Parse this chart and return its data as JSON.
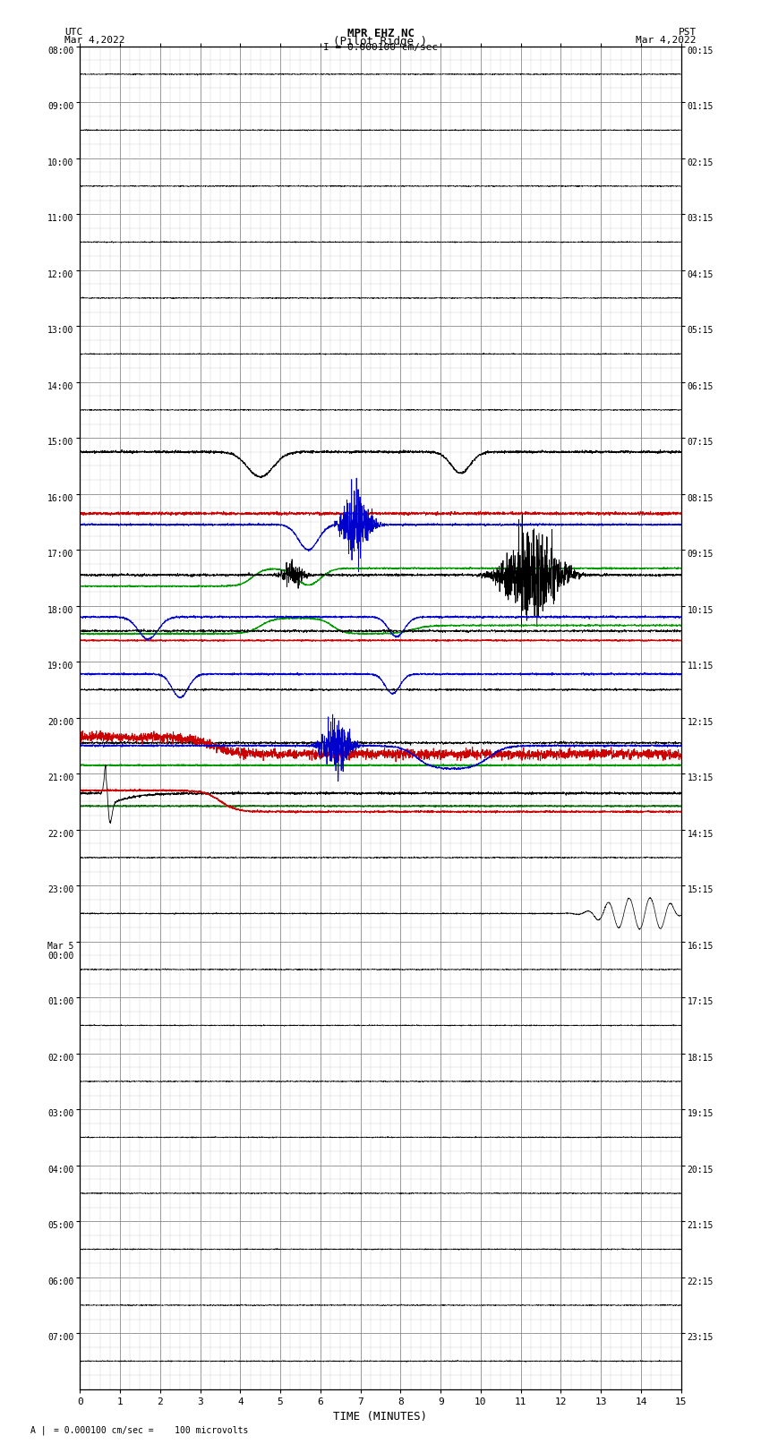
{
  "title_line1": "MPR EHZ NC",
  "title_line2": "(Pilot Ridge )",
  "title_line3": "I = 0.000100 cm/sec",
  "left_label_top": "UTC",
  "left_label_date": "Mar 4,2022",
  "right_label_top": "PST",
  "right_label_date": "Mar 4,2022",
  "bottom_label": "TIME (MINUTES)",
  "footer_text": "= 0.000100 cm/sec =    100 microvolts",
  "left_ytick_labels": [
    "08:00",
    "09:00",
    "10:00",
    "11:00",
    "12:00",
    "13:00",
    "14:00",
    "15:00",
    "16:00",
    "17:00",
    "18:00",
    "19:00",
    "20:00",
    "21:00",
    "22:00",
    "23:00",
    "Mar 5\n00:00",
    "01:00",
    "02:00",
    "03:00",
    "04:00",
    "05:00",
    "06:00",
    "07:00"
  ],
  "right_ytick_labels": [
    "00:15",
    "01:15",
    "02:15",
    "03:15",
    "04:15",
    "05:15",
    "06:15",
    "07:15",
    "08:15",
    "09:15",
    "10:15",
    "11:15",
    "12:15",
    "13:15",
    "14:15",
    "15:15",
    "16:15",
    "17:15",
    "18:15",
    "19:15",
    "20:15",
    "21:15",
    "22:15",
    "23:15"
  ],
  "num_rows": 24,
  "bg_color": "#ffffff",
  "grid_color": "#888888",
  "minor_grid_color": "#cccccc"
}
